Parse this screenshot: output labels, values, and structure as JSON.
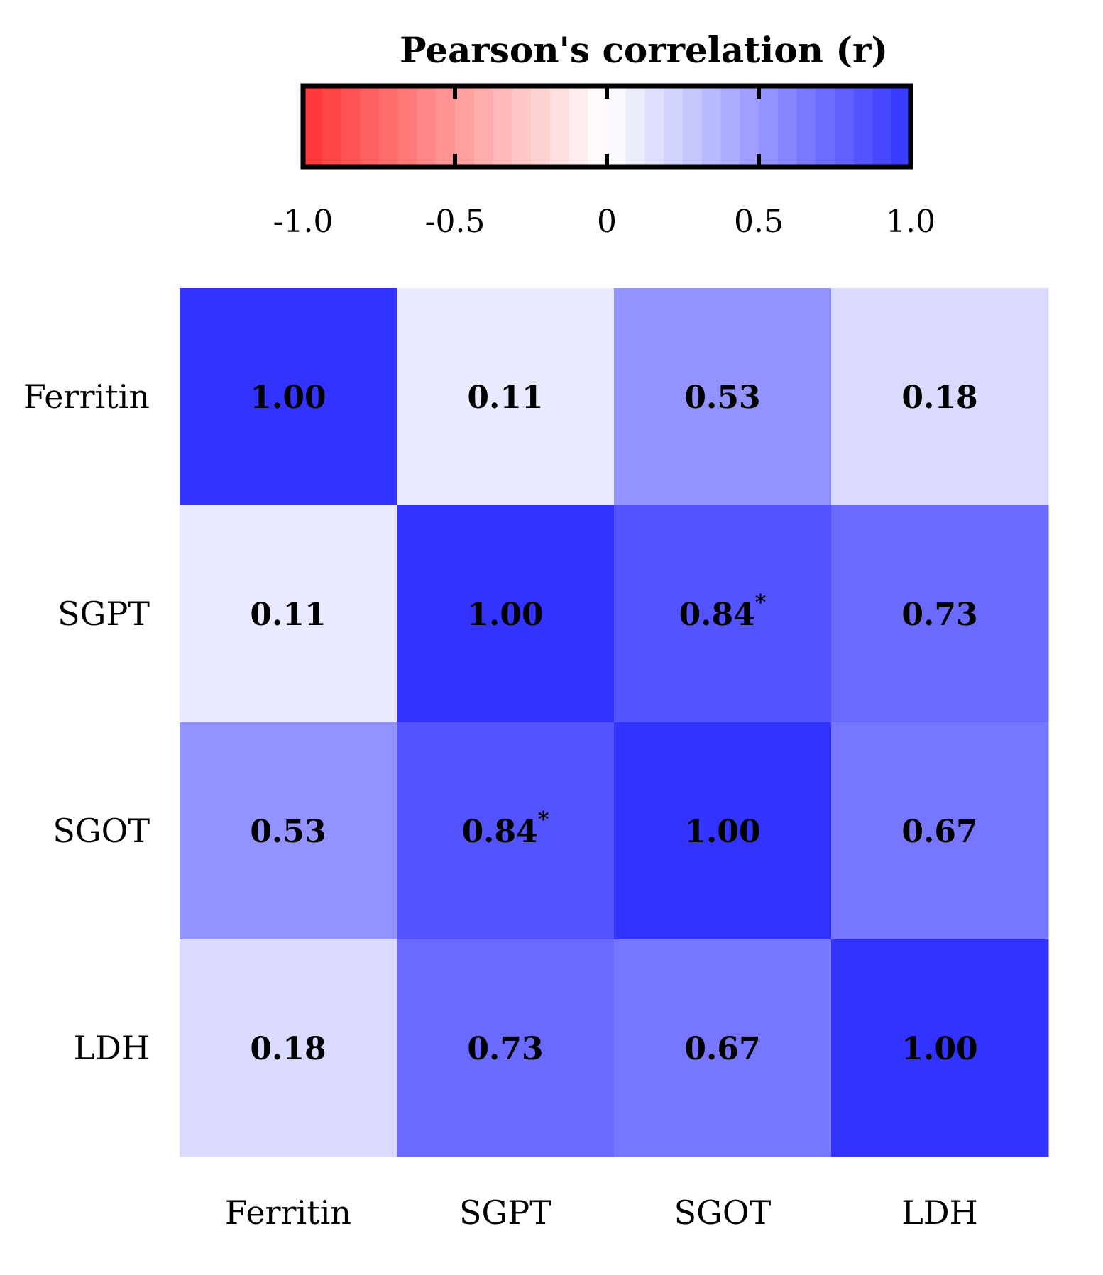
{
  "chart_data": {
    "type": "heatmap",
    "title": "Pearson's correlation (r)",
    "row_labels": [
      "Ferritin",
      "SGPT",
      "SGOT",
      "LDH"
    ],
    "column_labels": [
      "Ferritin",
      "SGPT",
      "SGOT",
      "LDH"
    ],
    "values": [
      [
        1.0,
        0.11,
        0.53,
        0.18
      ],
      [
        0.11,
        1.0,
        0.84,
        0.73
      ],
      [
        0.53,
        0.84,
        1.0,
        0.67
      ],
      [
        0.18,
        0.73,
        0.67,
        1.0
      ]
    ],
    "display_values": [
      [
        "1.00",
        "0.11",
        "0.53",
        "0.18"
      ],
      [
        "0.11",
        "1.00",
        "0.84",
        "0.73"
      ],
      [
        "0.53",
        "0.84",
        "1.00",
        "0.67"
      ],
      [
        "0.18",
        "0.73",
        "0.67",
        "1.00"
      ]
    ],
    "significance_marks": [
      [
        "",
        "",
        "",
        ""
      ],
      [
        "",
        "",
        "*",
        ""
      ],
      [
        "",
        "*",
        "",
        ""
      ],
      [
        "",
        "",
        "",
        ""
      ]
    ],
    "colorbar": {
      "range": [
        -1.0,
        1.0
      ],
      "ticks": [
        -1.0,
        -0.5,
        0,
        0.5,
        1.0
      ],
      "tick_labels": [
        "-1.0",
        "-0.5",
        "0",
        "0.5",
        "1.0"
      ],
      "negative_color": "#ff3333",
      "neutral_color": "#ffffff",
      "positive_color": "#3333ff",
      "placement": "top"
    }
  }
}
